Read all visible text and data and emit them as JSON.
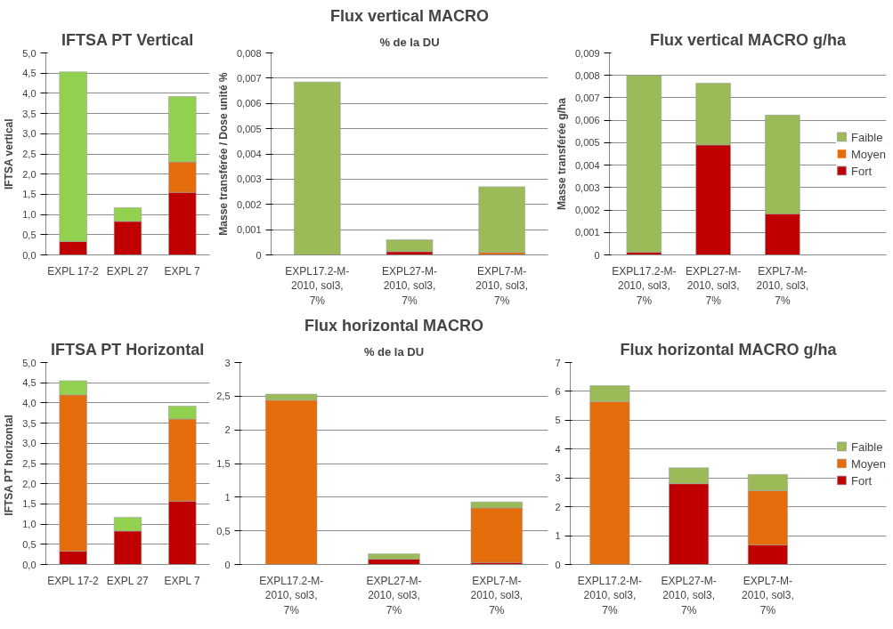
{
  "chart_data": [
    {
      "type": "bar",
      "stacked": true,
      "title": "IFTSA PT Vertical",
      "ylabel": "IFTSA vertical",
      "categories": [
        "EXPL 17-2",
        "EXPL 27",
        "EXPL 7"
      ],
      "ylim": [
        0,
        5
      ],
      "yticks": [
        {
          "value": 0,
          "label": "0,0"
        },
        {
          "value": 0.5,
          "label": "0,5"
        },
        {
          "value": 1,
          "label": "1,0"
        },
        {
          "value": 1.5,
          "label": "1,5"
        },
        {
          "value": 2,
          "label": "2,0"
        },
        {
          "value": 2.5,
          "label": "2,5"
        },
        {
          "value": 3,
          "label": "3,0"
        },
        {
          "value": 3.5,
          "label": "3,5"
        },
        {
          "value": 4,
          "label": "4,0"
        },
        {
          "value": 4.5,
          "label": "4,5"
        },
        {
          "value": 5,
          "label": "5,0"
        }
      ],
      "grid": "y",
      "series": [
        {
          "color": "#c00000",
          "values": [
            0.33,
            0.83,
            1.55
          ]
        },
        {
          "color": "#e46c0a",
          "values": [
            null,
            null,
            0.75
          ]
        },
        {
          "color": "#92d050",
          "values": [
            4.2,
            0.34,
            1.62
          ]
        }
      ]
    },
    {
      "type": "bar",
      "stacked": true,
      "title": "Flux vertical MACRO",
      "subtitle": "% de la DU",
      "ylabel": "Masse transférée / Dose unité %",
      "categories": [
        "EXPL17.2-M-2010, sol3, 7%",
        "EXPL27-M-2010, sol3, 7%",
        "EXPL7-M-2010, sol3, 7%"
      ],
      "ylim": [
        0,
        0.008
      ],
      "yticks": [
        0,
        {
          "value": 0.001,
          "label": "0,001"
        },
        {
          "value": 0.002,
          "label": "0,002"
        },
        {
          "value": 0.003,
          "label": "0,003"
        },
        {
          "value": 0.004,
          "label": "0,004"
        },
        {
          "value": 0.005,
          "label": "0,005"
        },
        {
          "value": 0.006,
          "label": "0,006"
        },
        {
          "value": 0.007,
          "label": "0,007"
        },
        {
          "value": 0.008,
          "label": "0,008"
        }
      ],
      "grid": "y",
      "series": [
        {
          "color": "#c00000",
          "values": [
            null,
            0.00013,
            null
          ]
        },
        {
          "color": "#e46c0a",
          "values": [
            null,
            null,
            0.0001
          ]
        },
        {
          "color": "#9bbb59",
          "values": [
            0.00685,
            0.00047,
            0.0026
          ]
        }
      ]
    },
    {
      "type": "bar",
      "stacked": true,
      "title": "Flux vertical MACRO g/ha",
      "ylabel": "Masse transférée g/ha",
      "categories": [
        "EXPL17.2-M-2010, sol3, 7%",
        "EXPL27-M-2010, sol3, 7%",
        "EXPL7-M-2010, sol3, 7%"
      ],
      "ylim": [
        0,
        0.009
      ],
      "yticks": [
        0,
        {
          "value": 0.001,
          "label": "0,001"
        },
        {
          "value": 0.002,
          "label": "0,002"
        },
        {
          "value": 0.003,
          "label": "0,003"
        },
        {
          "value": 0.004,
          "label": "0,004"
        },
        {
          "value": 0.005,
          "label": "0,005"
        },
        {
          "value": 0.006,
          "label": "0,006"
        },
        {
          "value": 0.007,
          "label": "0,007"
        },
        {
          "value": 0.008,
          "label": "0,008"
        },
        {
          "value": 0.009,
          "label": "0,009"
        }
      ],
      "grid": "y",
      "legend": "right",
      "series": [
        {
          "name": "Fort",
          "color": "#c00000",
          "values": [
            0.00012,
            0.0049,
            0.00183
          ]
        },
        {
          "name": "Moyen",
          "color": "#e46c0a",
          "values": [
            null,
            null,
            null
          ]
        },
        {
          "name": "Faible",
          "color": "#9bbb59",
          "values": [
            0.00788,
            0.00275,
            0.0044
          ]
        }
      ]
    },
    {
      "type": "bar",
      "stacked": true,
      "title": "IFTSA PT Horizontal",
      "ylabel": "IFTSA PT  horizontal",
      "categories": [
        "EXPL 17-2",
        "EXPL 27",
        "EXPL 7"
      ],
      "ylim": [
        0,
        5
      ],
      "yticks": [
        {
          "value": 0,
          "label": "0,0"
        },
        {
          "value": 0.5,
          "label": "0,5"
        },
        {
          "value": 1,
          "label": "1,0"
        },
        {
          "value": 1.5,
          "label": "1,5"
        },
        {
          "value": 2,
          "label": "2,0"
        },
        {
          "value": 2.5,
          "label": "2,5"
        },
        {
          "value": 3,
          "label": "3,0"
        },
        {
          "value": 3.5,
          "label": "3,5"
        },
        {
          "value": 4,
          "label": "4,0"
        },
        {
          "value": 4.5,
          "label": "4,5"
        },
        {
          "value": 5,
          "label": "5,0"
        }
      ],
      "grid": "y",
      "series": [
        {
          "color": "#c00000",
          "values": [
            0.33,
            0.83,
            1.57
          ]
        },
        {
          "color": "#e46c0a",
          "values": [
            3.87,
            null,
            2.03
          ]
        },
        {
          "color": "#92d050",
          "values": [
            0.35,
            0.34,
            0.32
          ]
        }
      ]
    },
    {
      "type": "bar",
      "stacked": true,
      "title": "Flux horizontal MACRO",
      "subtitle": "% de la DU",
      "categories": [
        "EXPL17.2-M-2010, sol3, 7%",
        "EXPL27-M-2010, sol3, 7%",
        "EXPL7-M-2010, sol3, 7%"
      ],
      "ylim": [
        0,
        3
      ],
      "yticks": [
        0,
        {
          "value": 0.5,
          "label": "0,5"
        },
        1,
        {
          "value": 1.5,
          "label": "1,5"
        },
        2,
        {
          "value": 2.5,
          "label": "2,5"
        },
        3
      ],
      "grid": "y",
      "series": [
        {
          "color": "#c00000",
          "values": [
            null,
            0.08,
            0.03
          ]
        },
        {
          "color": "#e46c0a",
          "values": [
            2.44,
            null,
            0.81
          ]
        },
        {
          "color": "#9bbb59",
          "values": [
            0.09,
            0.08,
            0.09
          ]
        }
      ]
    },
    {
      "type": "bar",
      "stacked": true,
      "title": "Flux horizontal MACRO g/ha",
      "categories": [
        "EXPL17.2-M-2010, sol3, 7%",
        "EXPL27-M-2010, sol3, 7%",
        "EXPL7-M-2010, sol3, 7%"
      ],
      "ylim": [
        0,
        7
      ],
      "yticks": [
        0,
        1,
        2,
        3,
        4,
        5,
        6,
        7
      ],
      "grid": "y",
      "legend": "right",
      "series": [
        {
          "name": "Fort",
          "color": "#c00000",
          "values": [
            null,
            2.8,
            0.68
          ]
        },
        {
          "name": "Moyen",
          "color": "#e46c0a",
          "values": [
            5.65,
            null,
            1.88
          ]
        },
        {
          "name": "Faible",
          "color": "#9bbb59",
          "values": [
            0.55,
            0.55,
            0.56
          ]
        }
      ]
    }
  ]
}
